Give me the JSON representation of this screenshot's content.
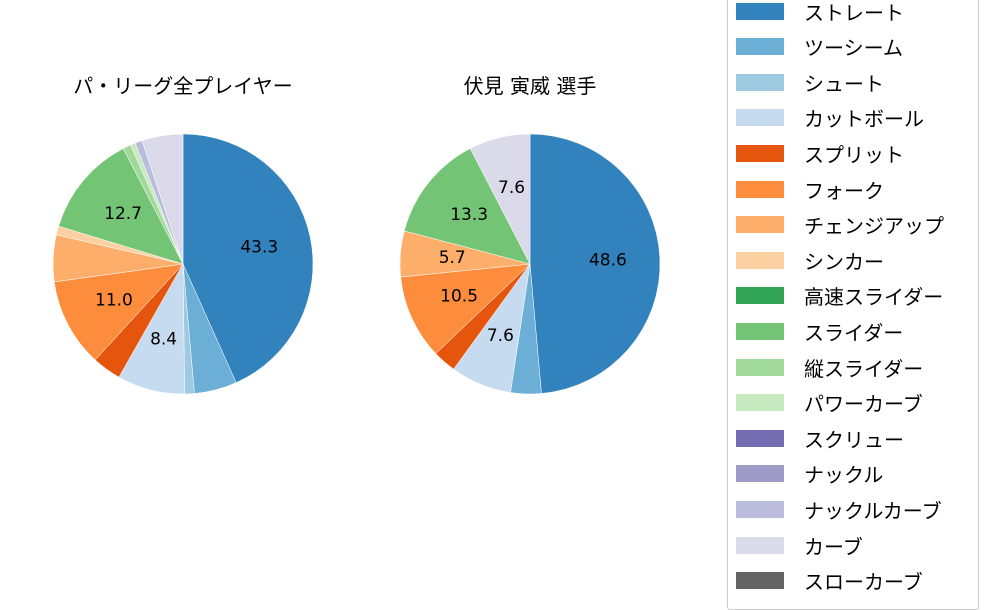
{
  "chart_data": [
    {
      "type": "pie",
      "title": "パ・リーグ全プレイヤー",
      "center": [
        183,
        264
      ],
      "radius": 130,
      "start_angle": "top, clockwise",
      "slices": [
        {
          "label": "ストレート",
          "value": 43.3,
          "color": "#3182bd",
          "show_label": true
        },
        {
          "label": "ツーシーム",
          "value": 5.3,
          "color": "#6baed6",
          "show_label": false
        },
        {
          "label": "シュート",
          "value": 1.2,
          "color": "#9ecae1",
          "show_label": false
        },
        {
          "label": "カットボール",
          "value": 8.4,
          "color": "#c6dbef",
          "show_label": true
        },
        {
          "label": "スプリット",
          "value": 3.6,
          "color": "#e6550d",
          "show_label": false
        },
        {
          "label": "フォーク",
          "value": 11.0,
          "color": "#fd8d3c",
          "show_label": true
        },
        {
          "label": "チェンジアップ",
          "value": 5.8,
          "color": "#fdae6b",
          "show_label": false
        },
        {
          "label": "シンカー",
          "value": 1.1,
          "color": "#fdd0a2",
          "show_label": false
        },
        {
          "label": "スライダー",
          "value": 12.7,
          "color": "#74c476",
          "show_label": true
        },
        {
          "label": "縦スライダー",
          "value": 1.0,
          "color": "#a1d99b",
          "show_label": false
        },
        {
          "label": "パワーカーブ",
          "value": 0.6,
          "color": "#c7e9c0",
          "show_label": false
        },
        {
          "label": "ナックルカーブ",
          "value": 0.9,
          "color": "#bcbddc",
          "show_label": false
        },
        {
          "label": "カーブ",
          "value": 5.1,
          "color": "#dadaeb",
          "show_label": false
        }
      ]
    },
    {
      "type": "pie",
      "title": "伏見 寅威  選手",
      "center": [
        530,
        264
      ],
      "radius": 130,
      "start_angle": "top, clockwise",
      "slices": [
        {
          "label": "ストレート",
          "value": 48.6,
          "color": "#3182bd",
          "show_label": true
        },
        {
          "label": "ツーシーム",
          "value": 3.8,
          "color": "#6baed6",
          "show_label": false
        },
        {
          "label": "カットボール",
          "value": 7.6,
          "color": "#c6dbef",
          "show_label": true
        },
        {
          "label": "スプリット",
          "value": 2.9,
          "color": "#e6550d",
          "show_label": false
        },
        {
          "label": "フォーク",
          "value": 10.5,
          "color": "#fd8d3c",
          "show_label": true
        },
        {
          "label": "チェンジアップ",
          "value": 5.7,
          "color": "#fdae6b",
          "show_label": true
        },
        {
          "label": "スライダー",
          "value": 13.3,
          "color": "#74c476",
          "show_label": true
        },
        {
          "label": "カーブ",
          "value": 7.6,
          "color": "#dadaeb",
          "show_label": true
        }
      ]
    }
  ],
  "legend": {
    "items": [
      {
        "label": "ストレート",
        "color": "#3182bd"
      },
      {
        "label": "ツーシーム",
        "color": "#6baed6"
      },
      {
        "label": "シュート",
        "color": "#9ecae1"
      },
      {
        "label": "カットボール",
        "color": "#c6dbef"
      },
      {
        "label": "スプリット",
        "color": "#e6550d"
      },
      {
        "label": "フォーク",
        "color": "#fd8d3c"
      },
      {
        "label": "チェンジアップ",
        "color": "#fdae6b"
      },
      {
        "label": "シンカー",
        "color": "#fdd0a2"
      },
      {
        "label": "高速スライダー",
        "color": "#31a354"
      },
      {
        "label": "スライダー",
        "color": "#74c476"
      },
      {
        "label": "縦スライダー",
        "color": "#a1d99b"
      },
      {
        "label": "パワーカーブ",
        "color": "#c7e9c0"
      },
      {
        "label": "スクリュー",
        "color": "#756bb1"
      },
      {
        "label": "ナックル",
        "color": "#9e9ac8"
      },
      {
        "label": "ナックルカーブ",
        "color": "#bcbddc"
      },
      {
        "label": "カーブ",
        "color": "#dadaeb"
      },
      {
        "label": "スローカーブ",
        "color": "#636363"
      }
    ]
  }
}
